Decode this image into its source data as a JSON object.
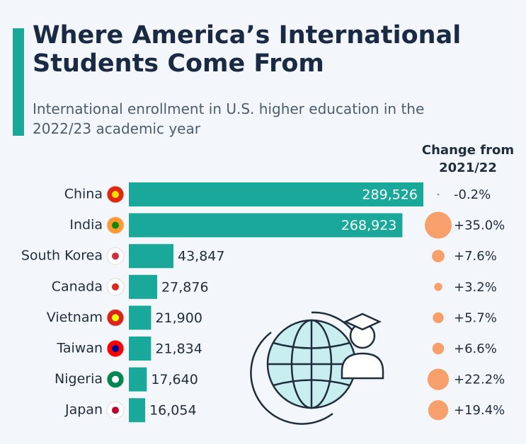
{
  "chart_data": {
    "type": "bar",
    "title": "Where America’s International Students Come From",
    "subtitle": "International enrollment in U.S. higher education in the 2022/23 academic year",
    "categories": [
      "China",
      "India",
      "South Korea",
      "Canada",
      "Vietnam",
      "Taiwan",
      "Nigeria",
      "Japan"
    ],
    "values": [
      289526,
      268923,
      43847,
      27876,
      21900,
      21834,
      17640,
      16054
    ],
    "value_labels": [
      "289,526",
      "268,923",
      "43,847",
      "27,876",
      "21,900",
      "21,834",
      "17,640",
      "16,054"
    ],
    "color": "#1aa89a",
    "change": {
      "title": "Change from 2021/22",
      "values": [
        -0.2,
        35.0,
        7.6,
        3.2,
        5.7,
        6.6,
        22.2,
        19.4
      ],
      "value_labels": [
        "-0.2%",
        "+35.0%",
        "+7.6%",
        "+3.2%",
        "+5.7%",
        "+6.6%",
        "+22.2%",
        "+19.4%"
      ],
      "color": "#f7a06b"
    }
  }
}
